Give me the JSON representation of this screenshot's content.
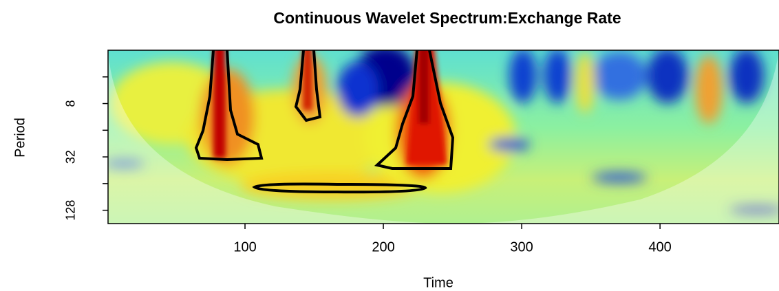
{
  "chart_data": {
    "type": "heatmap",
    "title": "Continuous Wavelet Spectrum:Exchange Rate",
    "xlabel": "Time",
    "ylabel": "Period",
    "xlim": [
      1,
      486
    ],
    "xticks": [
      100,
      200,
      300,
      400
    ],
    "ylim": [
      2,
      181
    ],
    "yscale": "log2",
    "yinverted": true,
    "yticks": [
      8,
      32,
      128
    ],
    "yminorticks": [
      4,
      16,
      64
    ]
  }
}
